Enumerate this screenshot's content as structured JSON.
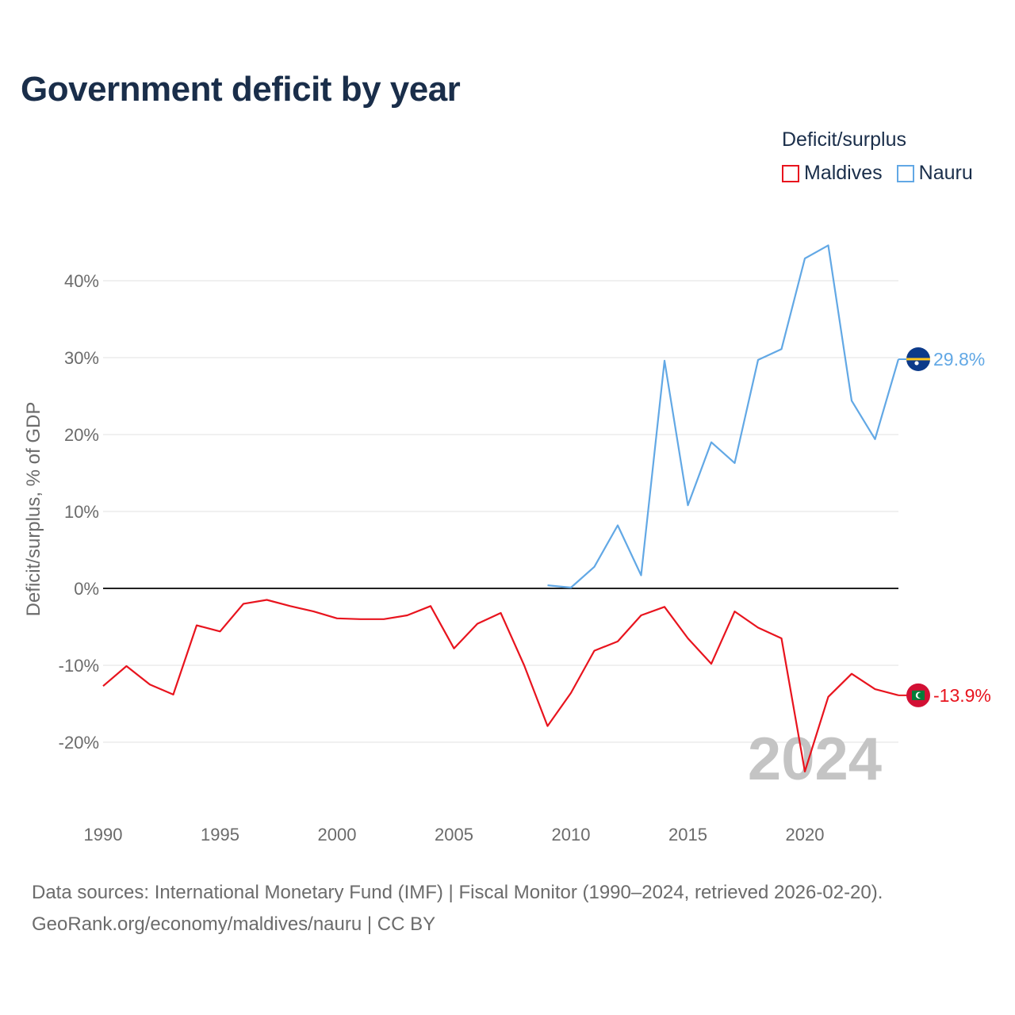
{
  "title": "Government deficit by year",
  "legend": {
    "title": "Deficit/surplus",
    "items": [
      {
        "label": "Maldives",
        "color": "#e8141e"
      },
      {
        "label": "Nauru",
        "color": "#62a8e5"
      }
    ]
  },
  "footer": {
    "sources": "Data sources: International Monetary Fund (IMF) | Fiscal Monitor (1990–2024, retrieved 2026-02-20).",
    "credit": "GeoRank.org/economy/maldives/nauru | CC BY"
  },
  "chart_data": {
    "type": "line",
    "title": "Government deficit by year",
    "xlabel": "",
    "ylabel": "Deficit/surplus, % of GDP",
    "xlim": [
      1990,
      2024
    ],
    "ylim": [
      -27,
      47
    ],
    "grid": true,
    "legend_position": "top-right",
    "year_marker": "2024",
    "x_ticks": [
      1990,
      1995,
      2000,
      2005,
      2010,
      2015,
      2020
    ],
    "x_tick_labels": [
      "1990",
      "1995",
      "2000",
      "2005",
      "2010",
      "2015",
      "2020"
    ],
    "y_ticks": [
      40,
      30,
      20,
      10,
      0,
      -10,
      -20
    ],
    "y_tick_labels": [
      "40%",
      "30%",
      "20%",
      "10%",
      "0%",
      "-10%",
      "-20%"
    ],
    "series": [
      {
        "name": "Maldives",
        "color": "#e8141e",
        "flag_icon": "maldives-flag-icon",
        "end_label": "-13.9%",
        "x": [
          1990,
          1991,
          1992,
          1993,
          1994,
          1995,
          1996,
          1997,
          1998,
          1999,
          2000,
          2001,
          2002,
          2003,
          2004,
          2005,
          2006,
          2007,
          2008,
          2009,
          2010,
          2011,
          2012,
          2013,
          2014,
          2015,
          2016,
          2017,
          2018,
          2019,
          2020,
          2021,
          2022,
          2023,
          2024
        ],
        "values": [
          -12.7,
          -10.1,
          -12.5,
          -13.8,
          -4.8,
          -5.6,
          -2.0,
          -1.5,
          -2.3,
          -3.0,
          -3.9,
          -4.0,
          -4.0,
          -3.5,
          -2.3,
          -7.8,
          -4.6,
          -3.2,
          -10.0,
          -17.9,
          -13.6,
          -8.1,
          -6.9,
          -3.5,
          -2.4,
          -6.5,
          -9.8,
          -3.0,
          -5.1,
          -6.5,
          -23.8,
          -14.1,
          -11.1,
          -13.1,
          -13.9
        ]
      },
      {
        "name": "Nauru",
        "color": "#62a8e5",
        "flag_icon": "nauru-flag-icon",
        "end_label": "29.8%",
        "x": [
          2009,
          2010,
          2011,
          2012,
          2013,
          2014,
          2015,
          2016,
          2017,
          2018,
          2019,
          2020,
          2021,
          2022,
          2023,
          2024
        ],
        "values": [
          0.4,
          0.1,
          2.8,
          8.2,
          1.7,
          29.6,
          10.8,
          19.0,
          16.3,
          29.7,
          31.1,
          42.9,
          44.6,
          24.4,
          19.4,
          29.8
        ]
      }
    ]
  }
}
